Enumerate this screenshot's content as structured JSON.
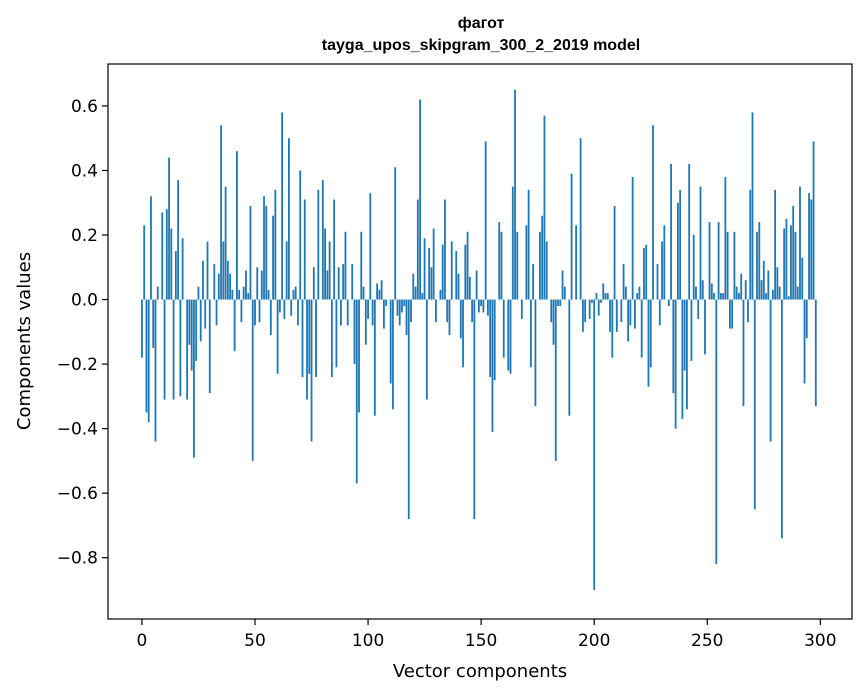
{
  "chart_data": {
    "type": "bar",
    "title": "фагот",
    "subtitle": "tayga_upos_skipgram_300_2_2019 model",
    "xlabel": "Vector components",
    "ylabel": "Components values",
    "xlim": [
      -15,
      314
    ],
    "ylim": [
      -0.99,
      0.73
    ],
    "xticks": [
      0,
      50,
      100,
      150,
      200,
      250,
      300
    ],
    "xtick_labels": [
      "0",
      "50",
      "100",
      "150",
      "200",
      "250",
      "300"
    ],
    "yticks": [
      -0.8,
      -0.6,
      -0.4,
      -0.2,
      0.0,
      0.2,
      0.4,
      0.6
    ],
    "ytick_labels": [
      "−0.8",
      "−0.6",
      "−0.4",
      "−0.2",
      "0.0",
      "0.2",
      "0.4",
      "0.6"
    ],
    "grid": false,
    "bar_color": "#1f77b4",
    "values": [
      -0.18,
      0.23,
      -0.35,
      -0.38,
      0.32,
      -0.15,
      -0.44,
      0.04,
      0.0,
      0.27,
      -0.31,
      0.28,
      0.44,
      0.22,
      -0.31,
      0.15,
      0.37,
      -0.3,
      0.19,
      0.0,
      -0.31,
      -0.14,
      -0.22,
      -0.49,
      -0.19,
      0.04,
      -0.13,
      0.12,
      -0.09,
      0.18,
      -0.29,
      0.0,
      0.11,
      -0.08,
      0.08,
      0.54,
      0.18,
      0.35,
      0.12,
      0.08,
      0.03,
      -0.16,
      0.46,
      0.03,
      -0.07,
      0.04,
      0.09,
      0.02,
      0.29,
      -0.5,
      -0.08,
      0.1,
      -0.07,
      0.09,
      0.32,
      0.29,
      0.03,
      -0.11,
      0.26,
      0.34,
      -0.23,
      -0.04,
      0.58,
      -0.06,
      0.18,
      0.5,
      -0.05,
      0.03,
      0.04,
      -0.08,
      0.4,
      -0.24,
      0.31,
      -0.31,
      -0.23,
      -0.44,
      0.1,
      -0.24,
      0.34,
      0.0,
      0.37,
      0.22,
      0.09,
      0.18,
      -0.24,
      0.31,
      -0.21,
      0.1,
      -0.08,
      0.11,
      0.21,
      -0.08,
      0.0,
      0.11,
      -0.2,
      -0.57,
      -0.35,
      0.21,
      0.04,
      -0.14,
      -0.06,
      0.33,
      -0.08,
      -0.36,
      0.05,
      0.03,
      0.06,
      -0.09,
      -0.02,
      0.0,
      -0.26,
      -0.34,
      0.41,
      -0.05,
      -0.08,
      -0.04,
      -0.02,
      -0.11,
      -0.68,
      -0.07,
      0.08,
      0.04,
      0.31,
      0.62,
      0.02,
      0.19,
      -0.31,
      0.16,
      0.1,
      0.22,
      -0.07,
      0.0,
      0.03,
      0.17,
      0.31,
      -0.07,
      -0.11,
      0.18,
      0.0,
      0.15,
      0.08,
      -0.12,
      -0.21,
      0.17,
      0.21,
      0.07,
      -0.07,
      -0.68,
      0.09,
      -0.04,
      -0.02,
      -0.04,
      0.49,
      -0.05,
      -0.24,
      -0.41,
      -0.25,
      0.0,
      0.24,
      0.21,
      -0.18,
      0.0,
      -0.22,
      -0.23,
      0.35,
      0.65,
      0.21,
      0.0,
      -0.06,
      0.0,
      0.23,
      0.34,
      -0.21,
      0.11,
      -0.33,
      0.0,
      0.21,
      0.26,
      0.57,
      0.18,
      0.0,
      -0.07,
      -0.14,
      -0.5,
      -0.02,
      -0.02,
      0.09,
      0.04,
      0.0,
      -0.36,
      0.39,
      0.0,
      0.23,
      0.0,
      0.5,
      -0.1,
      -0.07,
      0.0,
      -0.06,
      -0.01,
      -0.9,
      0.02,
      -0.05,
      -0.01,
      0.05,
      0.02,
      0.02,
      -0.1,
      -0.18,
      0.29,
      -0.1,
      0.0,
      -0.07,
      0.11,
      0.04,
      -0.13,
      -0.08,
      0.38,
      -0.09,
      0.02,
      0.04,
      -0.18,
      0.16,
      0.17,
      -0.27,
      -0.21,
      0.54,
      0.0,
      0.11,
      -0.08,
      0.18,
      0.23,
      0.0,
      -0.02,
      0.42,
      -0.29,
      -0.4,
      0.3,
      0.34,
      -0.37,
      -0.22,
      -0.34,
      0.42,
      -0.19,
      0.2,
      0.04,
      -0.06,
      0.35,
      0.06,
      -0.17,
      0.0,
      0.24,
      0.05,
      0.02,
      -0.82,
      0.24,
      0.02,
      0.02,
      0.38,
      0.21,
      -0.09,
      -0.09,
      0.21,
      0.04,
      0.02,
      0.08,
      -0.33,
      0.06,
      -0.07,
      0.34,
      0.58,
      -0.65,
      0.21,
      0.24,
      0.06,
      0.12,
      0.02,
      0.09,
      -0.44,
      0.03,
      0.34,
      0.1,
      0.04,
      -0.74,
      0.22,
      0.25,
      0.01,
      0.23,
      0.29,
      0.21,
      0.04,
      0.35,
      0.13,
      -0.26,
      -0.12,
      0.33,
      0.31,
      0.49,
      -0.33,
      0.0
    ]
  }
}
